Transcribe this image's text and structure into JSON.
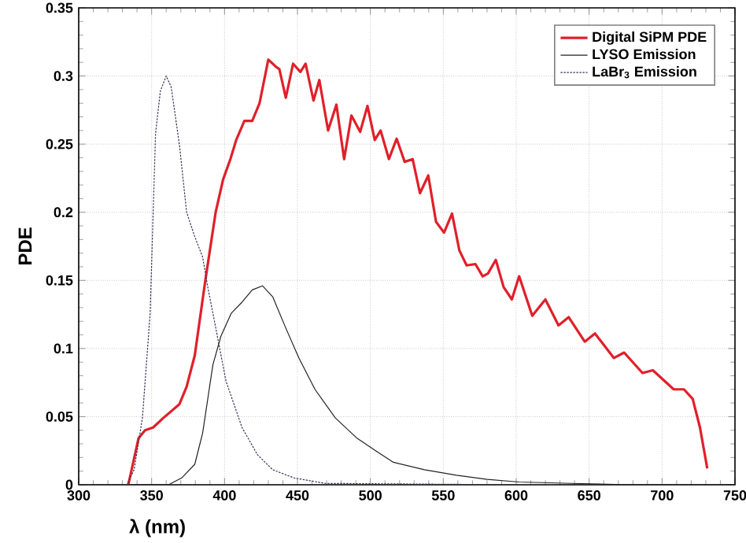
{
  "chart_data": {
    "type": "line",
    "xlabel": "λ (nm)",
    "ylabel": "PDE",
    "xlim": [
      300,
      750
    ],
    "xticks": [
      300,
      350,
      400,
      450,
      500,
      550,
      600,
      650,
      700,
      750
    ],
    "ylim": [
      0,
      0.35
    ],
    "yticks": [
      0,
      0.05,
      0.1,
      0.15,
      0.2,
      0.25,
      0.3,
      0.35
    ],
    "grid": true,
    "legend": "top right",
    "series": [
      {
        "name": "Digital SiPM PDE",
        "color": "#e0202a",
        "line_style": "solid",
        "x": [
          334,
          341,
          345.5,
          351,
          358,
          369,
          374,
          379.6,
          386.7,
          393.9,
          399,
          404,
          408,
          413.6,
          419,
          424,
          430,
          435,
          437.6,
          442,
          447,
          452,
          455.6,
          461,
          465,
          471,
          476.7,
          482,
          487,
          493,
          498,
          503,
          507,
          512.7,
          518,
          523.5,
          529,
          534,
          539.7,
          545,
          550.5,
          556,
          561,
          566,
          572,
          577,
          580.6,
          586,
          591.4,
          597,
          602,
          611,
          620,
          629,
          636,
          647,
          654,
          667,
          674,
          686.6,
          693.7,
          708,
          715,
          721,
          726,
          731
        ],
        "values": [
          0,
          0.034,
          0.04,
          0.042,
          0.049,
          0.059,
          0.072,
          0.095,
          0.149,
          0.2,
          0.224,
          0.239,
          0.253,
          0.267,
          0.267,
          0.28,
          0.312,
          0.307,
          0.305,
          0.284,
          0.309,
          0.303,
          0.309,
          0.282,
          0.297,
          0.26,
          0.279,
          0.239,
          0.271,
          0.259,
          0.278,
          0.253,
          0.26,
          0.239,
          0.254,
          0.237,
          0.239,
          0.214,
          0.227,
          0.193,
          0.185,
          0.199,
          0.172,
          0.161,
          0.162,
          0.153,
          0.155,
          0.165,
          0.145,
          0.136,
          0.153,
          0.124,
          0.136,
          0.117,
          0.123,
          0.105,
          0.111,
          0.093,
          0.097,
          0.082,
          0.084,
          0.07,
          0.07,
          0.063,
          0.042,
          0.012
        ]
      },
      {
        "name": "LYSO Emission",
        "color": "#222222",
        "line_style": "solid",
        "x": [
          300,
          361.6,
          370.6,
          379.6,
          385,
          392,
          397.5,
          404.7,
          412,
          419,
          426,
          433,
          442,
          451,
          462,
          476,
          491,
          505,
          515.8,
          537,
          559,
          580,
          602,
          638,
          674,
          750
        ],
        "values": [
          0,
          0,
          0.005,
          0.015,
          0.038,
          0.088,
          0.109,
          0.126,
          0.134,
          0.143,
          0.146,
          0.138,
          0.115,
          0.093,
          0.07,
          0.049,
          0.034,
          0.024,
          0.0165,
          0.011,
          0.007,
          0.004,
          0.002,
          0.001,
          0,
          0
        ]
      },
      {
        "name": "LaBr$_{3}$ Emission",
        "color": "#333355",
        "line_style": "dashed",
        "x": [
          300,
          333,
          338,
          343.7,
          349,
          352.7,
          356,
          360,
          363.4,
          369,
          374,
          379.6,
          385,
          388.5,
          394,
          401,
          412,
          422.6,
          433,
          447.7,
          469,
          600
        ],
        "values": [
          0,
          0,
          0.011,
          0.049,
          0.126,
          0.258,
          0.289,
          0.3,
          0.292,
          0.25,
          0.2,
          0.182,
          0.167,
          0.145,
          0.115,
          0.076,
          0.042,
          0.022,
          0.011,
          0.005,
          0.001,
          0
        ]
      }
    ]
  }
}
